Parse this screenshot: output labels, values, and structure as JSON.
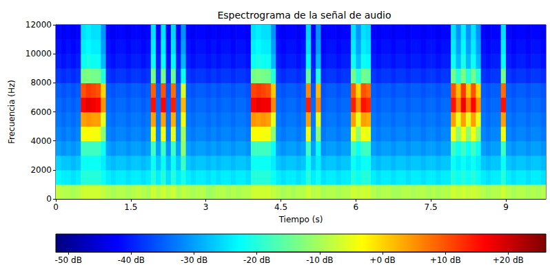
{
  "chart_data": {
    "type": "heatmap",
    "title": "Espectrograma de la señal de audio",
    "x_label": "Tiempo (s)",
    "y_label": "Frecuencia (Hz)",
    "xlim": [
      0,
      9.8
    ],
    "xticks": [
      0,
      1.5,
      3,
      4.5,
      6,
      7.5,
      9
    ],
    "ylim": [
      0,
      12000
    ],
    "yticks": [
      0,
      2000,
      4000,
      6000,
      8000,
      10000,
      12000
    ],
    "time_bins": [
      0,
      0.1,
      0.2,
      0.3,
      0.4,
      0.5,
      0.6,
      0.7,
      0.8,
      0.9,
      1.0,
      1.1,
      1.2,
      1.3,
      1.4,
      1.5,
      1.6,
      1.7,
      1.8,
      1.9,
      2.0,
      2.1,
      2.2,
      2.3,
      2.4,
      2.5,
      2.6,
      2.7,
      2.8,
      2.9,
      3.0,
      3.1,
      3.2,
      3.3,
      3.4,
      3.5,
      3.6,
      3.7,
      3.8,
      3.9,
      4.0,
      4.1,
      4.2,
      4.3,
      4.4,
      4.5,
      4.6,
      4.7,
      4.8,
      4.9,
      5.0,
      5.1,
      5.2,
      5.3,
      5.4,
      5.5,
      5.6,
      5.7,
      5.8,
      5.9,
      6.0,
      6.1,
      6.2,
      6.3,
      6.4,
      6.5,
      6.6,
      6.7,
      6.8,
      6.9,
      7.0,
      7.1,
      7.2,
      7.3,
      7.4,
      7.5,
      7.6,
      7.7,
      7.8,
      7.9,
      8.0,
      8.1,
      8.2,
      8.3,
      8.4,
      8.5,
      8.6,
      8.7,
      8.8,
      8.9,
      9.0,
      9.1,
      9.2,
      9.3,
      9.4,
      9.5,
      9.6,
      9.7,
      9.8
    ],
    "frequency_bins": [
      0,
      1000,
      2000,
      3000,
      4000,
      5000,
      6000,
      7000,
      8000,
      9000,
      10000,
      11000,
      12000
    ],
    "cells": [
      [
        -8,
        -9,
        -9,
        -10,
        -9,
        -7,
        -7,
        -7,
        -7,
        -8,
        -9,
        -10,
        -9,
        -9,
        -10,
        -9,
        -8,
        -9,
        -10,
        -7,
        -9,
        -7,
        -9,
        -7,
        -10,
        -8,
        -9,
        -10,
        -9,
        -9,
        -11,
        -10,
        -9,
        -9,
        -10,
        -9,
        -10,
        -9,
        -9,
        -7,
        -7,
        -7,
        -7,
        -8,
        -9,
        -10,
        -9,
        -10,
        -9,
        -9,
        -7,
        -9,
        -8,
        -10,
        -9,
        -9,
        -10,
        -9,
        -9,
        -7,
        -8,
        -7,
        -7,
        -9,
        -10,
        -9,
        -9,
        -10,
        -10,
        -9,
        -9,
        -10,
        -9,
        -9,
        -10,
        -9,
        -10,
        -9,
        -9,
        -7,
        -8,
        -7,
        -8,
        -7,
        -8,
        -9,
        -10,
        -9,
        -9,
        -7,
        -9,
        -10,
        -9,
        -9,
        -10,
        -9,
        -10,
        -9
      ],
      [
        -23,
        -24,
        -24,
        -25,
        -24,
        -20,
        -20,
        -20,
        -20,
        -22,
        -24,
        -25,
        -24,
        -24,
        -25,
        -24,
        -24,
        -25,
        -24,
        -20,
        -24,
        -20,
        -25,
        -20,
        -24,
        -21,
        -24,
        -25,
        -24,
        -24,
        -25,
        -24,
        -25,
        -24,
        -24,
        -25,
        -24,
        -24,
        -25,
        -20,
        -20,
        -20,
        -20,
        -22,
        -24,
        -25,
        -24,
        -24,
        -25,
        -24,
        -20,
        -24,
        -22,
        -25,
        -24,
        -24,
        -25,
        -24,
        -24,
        -20,
        -22,
        -20,
        -20,
        -24,
        -25,
        -24,
        -24,
        -25,
        -24,
        -24,
        -25,
        -24,
        -24,
        -25,
        -24,
        -24,
        -25,
        -24,
        -24,
        -20,
        -22,
        -20,
        -22,
        -20,
        -22,
        -24,
        -25,
        -24,
        -24,
        -20,
        -24,
        -25,
        -24,
        -24,
        -25,
        -24,
        -24,
        -25
      ],
      [
        -26,
        -27,
        -27,
        -28,
        -27,
        -22,
        -22,
        -22,
        -22,
        -24,
        -27,
        -28,
        -27,
        -27,
        -28,
        -27,
        -27,
        -28,
        -27,
        -22,
        -27,
        -22,
        -28,
        -22,
        -27,
        -18,
        -27,
        -28,
        -27,
        -27,
        -28,
        -27,
        -28,
        -27,
        -27,
        -28,
        -27,
        -27,
        -28,
        -22,
        -22,
        -22,
        -22,
        -24,
        -27,
        -28,
        -27,
        -27,
        -28,
        -27,
        -22,
        -27,
        -24,
        -28,
        -27,
        -27,
        -28,
        -27,
        -27,
        -22,
        -24,
        -22,
        -22,
        -27,
        -28,
        -27,
        -27,
        -28,
        -27,
        -27,
        -28,
        -27,
        -27,
        -28,
        -27,
        -27,
        -28,
        -27,
        -27,
        -22,
        -24,
        -22,
        -24,
        -22,
        -24,
        -27,
        -28,
        -27,
        -27,
        -22,
        -27,
        -28,
        -27,
        -27,
        -28,
        -27,
        -27,
        -28
      ],
      [
        -30,
        -31,
        -30,
        -31,
        -30,
        -18,
        -18,
        -18,
        -18,
        -22,
        -30,
        -31,
        -30,
        -30,
        -31,
        -30,
        -30,
        -31,
        -30,
        -18,
        -30,
        -18,
        -31,
        -18,
        -30,
        -12,
        -30,
        -31,
        -30,
        -30,
        -31,
        -30,
        -31,
        -30,
        -30,
        -31,
        -30,
        -30,
        -31,
        -18,
        -18,
        -18,
        -18,
        -22,
        -30,
        -31,
        -30,
        -30,
        -31,
        -30,
        -18,
        -30,
        -22,
        -31,
        -30,
        -30,
        -31,
        -30,
        -30,
        -18,
        -22,
        -18,
        -18,
        -30,
        -31,
        -30,
        -30,
        -31,
        -30,
        -30,
        -31,
        -30,
        -30,
        -31,
        -30,
        -30,
        -31,
        -30,
        -30,
        -18,
        -22,
        -18,
        -22,
        -18,
        -22,
        -30,
        -31,
        -30,
        -30,
        -18,
        -30,
        -31,
        -30,
        -30,
        -31,
        -30,
        -30,
        -31
      ],
      [
        -32,
        -33,
        -32,
        -33,
        -32,
        -4,
        -3,
        -4,
        -4,
        -12,
        -32,
        -33,
        -32,
        -32,
        -33,
        -32,
        -32,
        -33,
        -32,
        -4,
        -32,
        -4,
        -33,
        -5,
        -32,
        -10,
        -32,
        -33,
        -32,
        -32,
        -33,
        -32,
        -33,
        -32,
        -32,
        -33,
        -32,
        -32,
        -33,
        -4,
        -3,
        -4,
        -4,
        -12,
        -32,
        -33,
        -32,
        -32,
        -33,
        -32,
        -4,
        -32,
        -12,
        -33,
        -32,
        -32,
        -33,
        -32,
        -32,
        -4,
        -12,
        -4,
        -5,
        -32,
        -33,
        -32,
        -32,
        -33,
        -32,
        -32,
        -33,
        -32,
        -32,
        -33,
        -32,
        -32,
        -33,
        -32,
        -32,
        -4,
        -12,
        -4,
        -12,
        -4,
        -12,
        -32,
        -33,
        -32,
        -32,
        -4,
        -32,
        -33,
        -32,
        -32,
        -33,
        -32,
        -32,
        -33
      ],
      [
        -33,
        -34,
        -33,
        -34,
        -33,
        4,
        5,
        4,
        4,
        -5,
        -33,
        -34,
        -33,
        -33,
        -34,
        -33,
        -33,
        -34,
        -33,
        4,
        -33,
        4,
        -34,
        3,
        -33,
        -4,
        -33,
        -34,
        -33,
        -33,
        -34,
        -33,
        -34,
        -33,
        -33,
        -34,
        -33,
        -33,
        -34,
        5,
        4,
        5,
        4,
        -5,
        -33,
        -34,
        -33,
        -33,
        -34,
        -33,
        4,
        -33,
        -5,
        -34,
        -33,
        -33,
        -34,
        -33,
        -33,
        4,
        -5,
        4,
        3,
        -33,
        -34,
        -33,
        -33,
        -34,
        -33,
        -33,
        -34,
        -33,
        -33,
        -34,
        -33,
        -33,
        -34,
        -33,
        -33,
        4,
        -5,
        4,
        -5,
        4,
        -5,
        -33,
        -34,
        -33,
        -33,
        4,
        -33,
        -34,
        -33,
        -33,
        -34,
        -33,
        -33,
        -34
      ],
      [
        -34,
        -35,
        -34,
        -35,
        -34,
        16,
        18,
        17,
        16,
        5,
        -34,
        -35,
        -34,
        -34,
        -35,
        -34,
        -34,
        -35,
        -34,
        15,
        -34,
        16,
        -35,
        14,
        -34,
        2,
        -34,
        -35,
        -34,
        -34,
        -35,
        -34,
        -35,
        -34,
        -34,
        -35,
        -34,
        -34,
        -35,
        16,
        18,
        17,
        17,
        6,
        -34,
        -35,
        -34,
        -34,
        -35,
        -34,
        14,
        -34,
        6,
        -35,
        -34,
        -34,
        -35,
        -34,
        -34,
        14,
        5,
        15,
        13,
        -34,
        -35,
        -34,
        -34,
        -35,
        -34,
        -34,
        -35,
        -34,
        -34,
        -35,
        -34,
        -34,
        -35,
        -34,
        -34,
        15,
        6,
        17,
        7,
        16,
        5,
        -34,
        -35,
        -34,
        -34,
        15,
        -34,
        -35,
        -34,
        -34,
        -35,
        -34,
        -34,
        -35
      ],
      [
        -35,
        -36,
        -35,
        -36,
        -35,
        10,
        12,
        11,
        10,
        0,
        -35,
        -36,
        -35,
        -35,
        -36,
        -35,
        -35,
        -36,
        -35,
        9,
        -35,
        10,
        -36,
        8,
        -35,
        -6,
        -35,
        -36,
        -35,
        -35,
        -36,
        -35,
        -36,
        -35,
        -35,
        -36,
        -35,
        -35,
        -36,
        11,
        12,
        11,
        10,
        1,
        -35,
        -36,
        -35,
        -35,
        -36,
        -35,
        6,
        -35,
        2,
        -36,
        -35,
        -35,
        -36,
        -35,
        -35,
        9,
        0,
        10,
        8,
        -35,
        -36,
        -35,
        -35,
        -36,
        -35,
        -35,
        -36,
        -35,
        -35,
        -36,
        -35,
        -35,
        -36,
        -35,
        -35,
        10,
        2,
        12,
        1,
        10,
        0,
        -35,
        -36,
        -35,
        -35,
        8,
        -35,
        -36,
        -35,
        -35,
        -36,
        -35,
        -35,
        -36
      ],
      [
        -38,
        -39,
        -38,
        -39,
        -38,
        -14,
        -13,
        -14,
        -14,
        -20,
        -38,
        -39,
        -38,
        -38,
        -39,
        -38,
        -38,
        -39,
        -38,
        -14,
        -38,
        -14,
        -39,
        -15,
        -38,
        -22,
        -38,
        -39,
        -38,
        -38,
        -39,
        -38,
        -39,
        -38,
        -38,
        -39,
        -38,
        -38,
        -39,
        -14,
        -13,
        -14,
        -14,
        -20,
        -38,
        -39,
        -38,
        -38,
        -39,
        -38,
        -15,
        -38,
        -20,
        -39,
        -38,
        -38,
        -39,
        -38,
        -38,
        -14,
        -20,
        -14,
        -15,
        -38,
        -39,
        -38,
        -38,
        -39,
        -38,
        -38,
        -39,
        -38,
        -38,
        -39,
        -38,
        -38,
        -39,
        -38,
        -38,
        -14,
        -20,
        -13,
        -20,
        -14,
        -20,
        -38,
        -39,
        -38,
        -38,
        -14,
        -38,
        -39,
        -38,
        -38,
        -39,
        -38,
        -38,
        -39
      ],
      [
        -40,
        -41,
        -40,
        -41,
        -40,
        -22,
        -21,
        -22,
        -22,
        -28,
        -40,
        -41,
        -40,
        -40,
        -41,
        -40,
        -40,
        -41,
        -40,
        -22,
        -40,
        -22,
        -41,
        -23,
        -40,
        -28,
        -40,
        -41,
        -40,
        -40,
        -41,
        -40,
        -41,
        -40,
        -40,
        -41,
        -40,
        -40,
        -41,
        -22,
        -21,
        -22,
        -22,
        -28,
        -40,
        -41,
        -40,
        -40,
        -41,
        -40,
        -23,
        -40,
        -28,
        -41,
        -40,
        -40,
        -41,
        -40,
        -40,
        -22,
        -28,
        -22,
        -23,
        -40,
        -41,
        -40,
        -40,
        -41,
        -40,
        -40,
        -41,
        -40,
        -40,
        -41,
        -40,
        -40,
        -41,
        -40,
        -40,
        -22,
        -28,
        -21,
        -28,
        -22,
        -28,
        -40,
        -41,
        -40,
        -40,
        -22,
        -40,
        -41,
        -40,
        -40,
        -41,
        -40,
        -40,
        -41
      ],
      [
        -41,
        -42,
        -41,
        -42,
        -41,
        -24,
        -23,
        -24,
        -24,
        -30,
        -41,
        -42,
        -41,
        -41,
        -42,
        -41,
        -41,
        -42,
        -41,
        -24,
        -41,
        -24,
        -42,
        -25,
        -41,
        -30,
        -41,
        -42,
        -41,
        -41,
        -42,
        -41,
        -42,
        -41,
        -41,
        -42,
        -41,
        -41,
        -42,
        -24,
        -23,
        -24,
        -24,
        -30,
        -41,
        -42,
        -41,
        -41,
        -42,
        -41,
        -25,
        -41,
        -30,
        -42,
        -41,
        -41,
        -42,
        -41,
        -41,
        -24,
        -30,
        -24,
        -25,
        -41,
        -42,
        -41,
        -41,
        -42,
        -41,
        -41,
        -42,
        -41,
        -41,
        -42,
        -41,
        -41,
        -42,
        -41,
        -41,
        -24,
        -30,
        -23,
        -30,
        -24,
        -30,
        -41,
        -42,
        -41,
        -41,
        -24,
        -41,
        -42,
        -41,
        -41,
        -42,
        -41,
        -41,
        -42
      ],
      [
        -42,
        -43,
        -42,
        -43,
        -42,
        -25,
        -24,
        -25,
        -25,
        -31,
        -42,
        -43,
        -42,
        -42,
        -43,
        -42,
        -42,
        -43,
        -42,
        -25,
        -42,
        -25,
        -43,
        -26,
        -42,
        -31,
        -42,
        -43,
        -42,
        -42,
        -43,
        -42,
        -43,
        -42,
        -42,
        -43,
        -42,
        -42,
        -43,
        -25,
        -24,
        -25,
        -25,
        -31,
        -42,
        -43,
        -42,
        -42,
        -43,
        -42,
        -26,
        -42,
        -31,
        -43,
        -42,
        -42,
        -43,
        -42,
        -42,
        -25,
        -31,
        -25,
        -26,
        -42,
        -43,
        -42,
        -42,
        -43,
        -42,
        -42,
        -43,
        -42,
        -42,
        -43,
        -42,
        -42,
        -43,
        -42,
        -42,
        -25,
        -31,
        -24,
        -31,
        -25,
        -31,
        -42,
        -43,
        -42,
        -42,
        -25,
        -42,
        -43,
        -42,
        -42,
        -43,
        -42,
        -42,
        -43
      ]
    ],
    "colorbar": {
      "range": [
        -52,
        26
      ],
      "ticks": [
        {
          "value": -50,
          "label": "-50 dB"
        },
        {
          "value": -40,
          "label": "-40 dB"
        },
        {
          "value": -30,
          "label": "-30 dB"
        },
        {
          "value": -20,
          "label": "-20 dB"
        },
        {
          "value": -10,
          "label": "-10 dB"
        },
        {
          "value": 0,
          "label": "+0 dB"
        },
        {
          "value": 10,
          "label": "+10 dB"
        },
        {
          "value": 20,
          "label": "+20 dB"
        }
      ]
    }
  }
}
